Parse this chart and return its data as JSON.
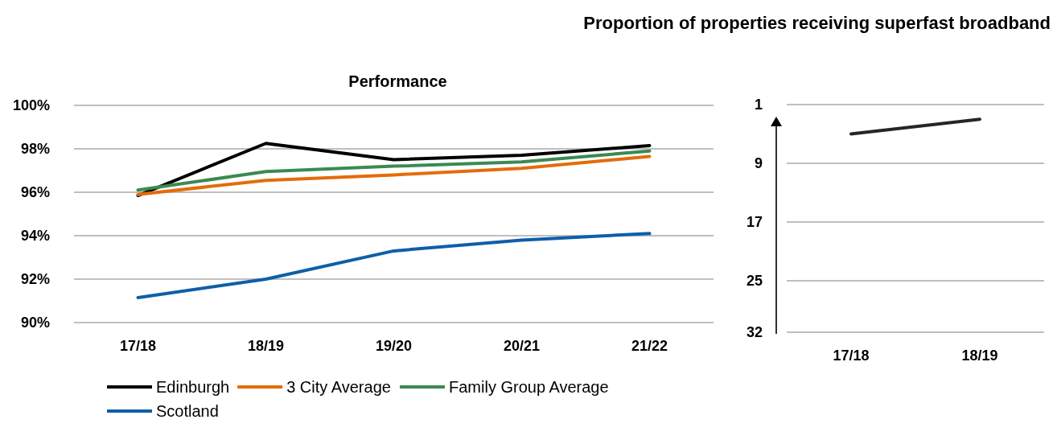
{
  "chart_data": [
    {
      "type": "line",
      "title": "Performance",
      "categories": [
        "17/18",
        "18/19",
        "19/20",
        "20/21",
        "21/22"
      ],
      "series": [
        {
          "name": "Edinburgh",
          "color": "#000000",
          "values": [
            95.85,
            98.25,
            97.5,
            97.7,
            98.15
          ]
        },
        {
          "name": "3 City Average",
          "color": "#e46c0a",
          "values": [
            95.9,
            96.55,
            96.8,
            97.1,
            97.65
          ]
        },
        {
          "name": "Family Group Average",
          "color": "#3a8a52",
          "values": [
            96.1,
            96.95,
            97.2,
            97.4,
            97.9
          ]
        },
        {
          "name": "Scotland",
          "color": "#0e5fa8",
          "values": [
            91.15,
            92.0,
            93.3,
            93.8,
            94.1
          ]
        }
      ],
      "ylim": [
        90,
        100
      ],
      "yticks": [
        {
          "value": 90,
          "label": "90%"
        },
        {
          "value": 92,
          "label": "92%"
        },
        {
          "value": 94,
          "label": "94%"
        },
        {
          "value": 96,
          "label": "96%"
        },
        {
          "value": 98,
          "label": "98%"
        },
        {
          "value": 100,
          "label": "100%"
        }
      ],
      "grid": "y",
      "legend": "bottom",
      "marker": "none",
      "line_style": "solid"
    },
    {
      "type": "line",
      "title": "Proportion of properties receiving superfast broadband",
      "categories": [
        "17/18",
        "18/19"
      ],
      "series": [
        {
          "color": "#262626",
          "values": [
            5,
            3
          ]
        }
      ],
      "ylim": [
        32,
        1
      ],
      "yticks": [
        1,
        9,
        17,
        25,
        32
      ],
      "grid": "y",
      "marker": "none",
      "line_style": "solid"
    }
  ]
}
